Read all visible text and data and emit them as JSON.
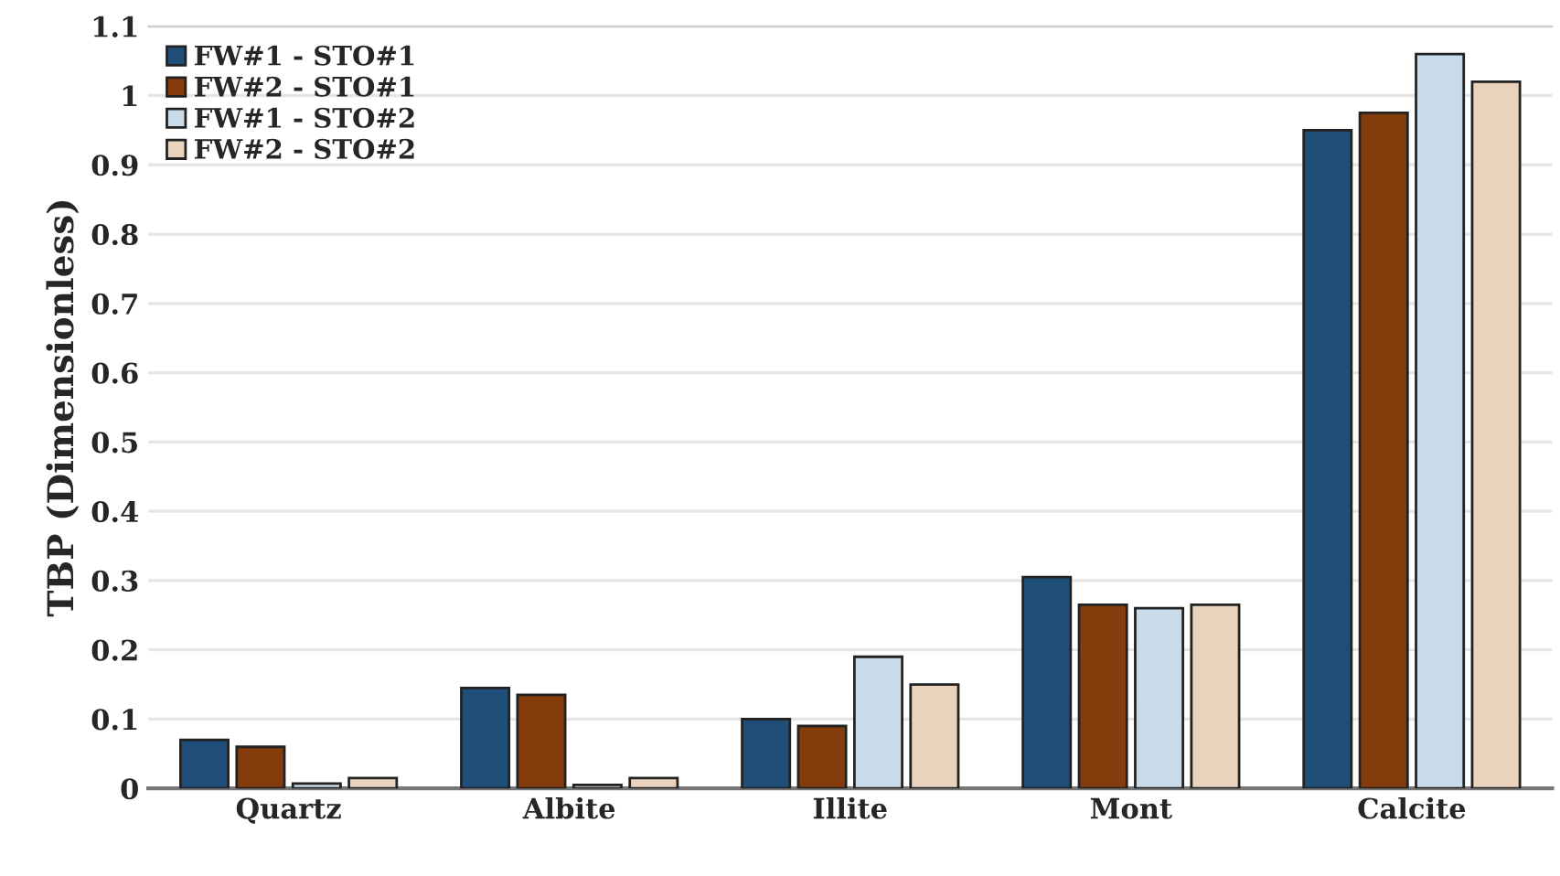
{
  "chart_data": {
    "type": "bar",
    "ylabel": "TBP (Dimensionless)",
    "categories": [
      "Quartz",
      "Albite",
      "Illite",
      "Mont",
      "Calcite"
    ],
    "series": [
      {
        "name": "FW#1 - STO#1",
        "color": "#1f4e79",
        "values": [
          0.07,
          0.145,
          0.1,
          0.305,
          0.95
        ]
      },
      {
        "name": "FW#2 - STO#1",
        "color": "#843c0c",
        "values": [
          0.06,
          0.135,
          0.09,
          0.265,
          0.975
        ]
      },
      {
        "name": "FW#1 - STO#2",
        "color": "#c9dbe8",
        "values": [
          0.007,
          0.005,
          0.19,
          0.26,
          1.06
        ]
      },
      {
        "name": "FW#2 - STO#2",
        "color": "#ead3bd",
        "values": [
          0.015,
          0.015,
          0.15,
          0.265,
          1.02
        ]
      }
    ],
    "ylim": [
      0,
      1.1
    ],
    "yticks": [
      0,
      0.1,
      0.2,
      0.3,
      0.4,
      0.5,
      0.6,
      0.7,
      0.8,
      0.9,
      1,
      1.1
    ],
    "grid": "y",
    "legend": "top left"
  }
}
